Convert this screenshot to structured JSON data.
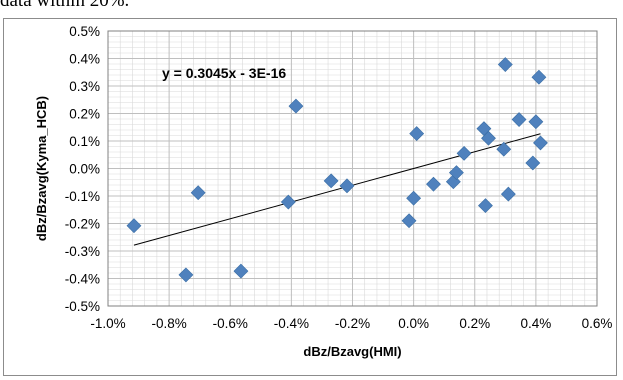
{
  "caption": {
    "text": "data within 20%."
  },
  "chart_data": {
    "type": "scatter",
    "xlabel": "dBz/Bzavg(HMI)",
    "ylabel": "dBz/Bzavg(Kyma_HCB)",
    "xlim": [
      -1.0,
      0.6
    ],
    "ylim": [
      -0.5,
      0.5
    ],
    "grid": true,
    "x_ticks": [
      "-1.0%",
      "-0.8%",
      "-0.6%",
      "-0.4%",
      "-0.2%",
      "0.0%",
      "0.2%",
      "0.4%",
      "0.6%"
    ],
    "y_ticks": [
      "0.5%",
      "0.4%",
      "0.3%",
      "0.2%",
      "0.1%",
      "0.0%",
      "-0.1%",
      "-0.2%",
      "-0.3%",
      "-0.4%",
      "-0.5%"
    ],
    "x_tick_values": [
      -1.0,
      -0.8,
      -0.6,
      -0.4,
      -0.2,
      0.0,
      0.2,
      0.4,
      0.6
    ],
    "y_tick_values": [
      0.5,
      0.4,
      0.3,
      0.2,
      0.1,
      0.0,
      -0.1,
      -0.2,
      -0.3,
      -0.4,
      -0.5
    ],
    "points": [
      {
        "x": -0.915,
        "y": -0.208
      },
      {
        "x": -0.745,
        "y": -0.387
      },
      {
        "x": -0.705,
        "y": -0.088
      },
      {
        "x": -0.565,
        "y": -0.373
      },
      {
        "x": -0.41,
        "y": -0.122
      },
      {
        "x": -0.385,
        "y": 0.227
      },
      {
        "x": -0.27,
        "y": -0.045
      },
      {
        "x": -0.218,
        "y": -0.063
      },
      {
        "x": -0.015,
        "y": -0.19
      },
      {
        "x": 0.0,
        "y": -0.108
      },
      {
        "x": 0.01,
        "y": 0.127
      },
      {
        "x": 0.065,
        "y": -0.057
      },
      {
        "x": 0.13,
        "y": -0.048
      },
      {
        "x": 0.14,
        "y": -0.015
      },
      {
        "x": 0.165,
        "y": 0.055
      },
      {
        "x": 0.23,
        "y": 0.145
      },
      {
        "x": 0.245,
        "y": 0.11
      },
      {
        "x": 0.235,
        "y": -0.135
      },
      {
        "x": 0.295,
        "y": 0.07
      },
      {
        "x": 0.3,
        "y": 0.378
      },
      {
        "x": 0.31,
        "y": -0.093
      },
      {
        "x": 0.345,
        "y": 0.178
      },
      {
        "x": 0.39,
        "y": 0.02
      },
      {
        "x": 0.4,
        "y": 0.17
      },
      {
        "x": 0.41,
        "y": 0.332
      },
      {
        "x": 0.415,
        "y": 0.093
      }
    ],
    "trendline": {
      "label": "y = 0.3045x - 3E-16",
      "slope": 0.3045,
      "intercept": 0,
      "x_range": [
        -0.915,
        0.415
      ]
    },
    "colors": {
      "marker": "#4f81bd",
      "trendline": "#000000",
      "grid": "#d9d9d9",
      "plot_border": "#808080"
    }
  }
}
